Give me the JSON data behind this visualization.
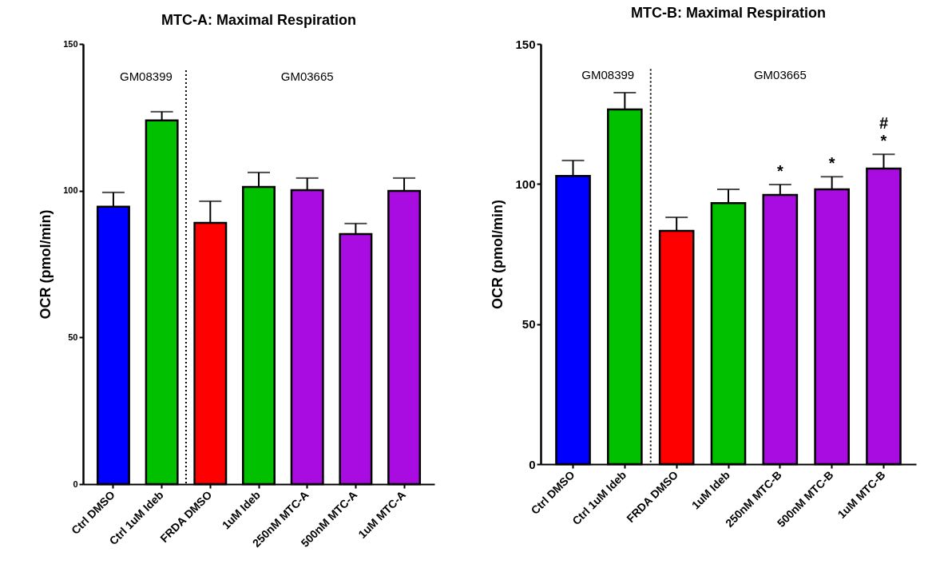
{
  "chart_data": [
    {
      "type": "bar",
      "title": "MTC-A: Maximal Respiration",
      "ylabel": "OCR (pmol/min)",
      "categories": [
        "Ctrl DMSO",
        "Ctrl 1uM Ideb",
        "FRDA DMSO",
        "1uM Ideb",
        "250nM MTC-A",
        "500nM MTC-A",
        "1uM MTC-A"
      ],
      "values": [
        94.5,
        123.9,
        89,
        101.3,
        100.2,
        85.2,
        99.9
      ],
      "errors": [
        [
          94.5,
          99.4
        ],
        [
          123.9,
          126.9
        ],
        [
          89,
          96.4
        ],
        [
          101.3,
          106.2
        ],
        [
          100.2,
          104.3
        ],
        [
          85.2,
          88.8
        ],
        [
          99.9,
          104.3
        ]
      ],
      "colors": [
        "#0000ff",
        "#00c000",
        "#ff0000",
        "#00c000",
        "#a80ce0",
        "#a80ce0",
        "#a80ce0"
      ],
      "ylim": [
        0,
        150
      ],
      "yticks": [
        0,
        50,
        100,
        150
      ],
      "grid": false,
      "legend": false,
      "annotations": [
        "GM08399",
        "GM03665"
      ]
    },
    {
      "type": "bar",
      "title": "MTC-B: Maximal Respiration",
      "ylabel": "OCR (pmol/min)",
      "categories": [
        "Ctrl DMSO",
        "Ctrl 1uM Ideb",
        "FRDA DMSO",
        "1uM Ideb",
        "250nM MTC-B",
        "500nM MTC-B",
        "1uM MTC-B"
      ],
      "values": [
        102.9,
        126.6,
        83.3,
        93.2,
        96.1,
        98.1,
        105.5
      ],
      "errors": [
        [
          102.9,
          108.4
        ],
        [
          126.6,
          132.6
        ],
        [
          83.3,
          88.1
        ],
        [
          93.2,
          98.1
        ],
        [
          96.1,
          99.8
        ],
        [
          98.1,
          102.6
        ],
        [
          105.5,
          110.6
        ]
      ],
      "colors": [
        "#0000ff",
        "#00c000",
        "#ff0000",
        "#00c000",
        "#a80ce0",
        "#a80ce0",
        "#a80ce0"
      ],
      "ylim": [
        0,
        150
      ],
      "yticks": [
        0,
        50,
        100,
        150
      ],
      "grid": false,
      "legend": false,
      "annotations": [
        "GM08399",
        "GM03665",
        {
          "text": "*",
          "x": "250nM MTC-B",
          "y": 99.8
        },
        {
          "text": "*",
          "x": "500nM MTC-B",
          "y": 102.6
        },
        {
          "text": "*",
          "x": "1uM MTC-B",
          "y": 110.6
        },
        {
          "text": "#",
          "x": "1uM MTC-B",
          "y": 110.6
        }
      ]
    }
  ]
}
